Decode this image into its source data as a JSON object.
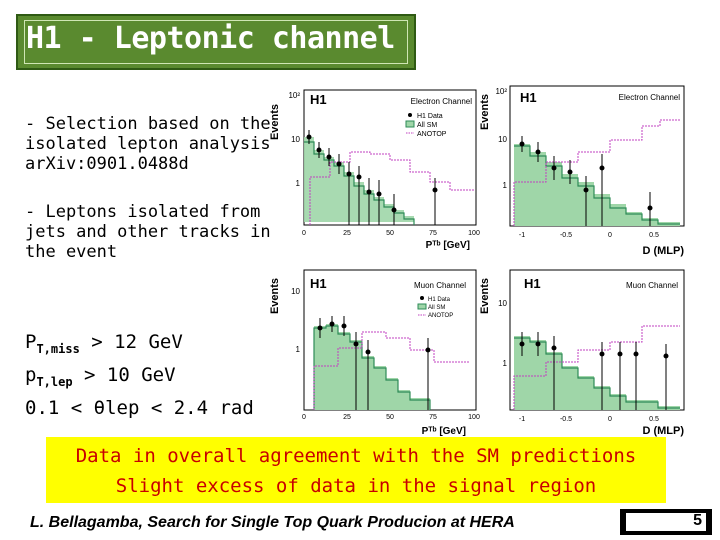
{
  "slide": {
    "title": "H1 - Leptonic channel",
    "bullet1": "- Selection based on the isolated lepton analysis arXiv:0901.0488d",
    "bullet2": "- Leptons isolated from jets and other tracks in the event",
    "cut1_a": "P",
    "cut1_sub": "T,miss",
    "cut1_b": " > 12 GeV",
    "cut2_a": "p",
    "cut2_sub": "T,lep",
    "cut2_b": " > 10 GeV",
    "cut3": "0.1 < θlep < 2.4 rad",
    "summary1": "Data in overall agreement with the SM predictions",
    "summary2": "Slight excess of data in the signal region",
    "footer": "L. Bellagamba, Search for Single Top Quark Producion at HERA",
    "page": "5"
  },
  "plots": {
    "experiment": "H1",
    "ylabel": "Events",
    "electron_channel": "Electron Channel",
    "muon_channel": "Muon Channel",
    "legend_data": "H1 Data",
    "legend_sm": "All SM",
    "legend_anotop": "ANOTOP",
    "xlabel_pt": "Pᵀᵇ [GeV]",
    "xlabel_mlp": "D (MLP)",
    "pt_ticks": [
      "0",
      "25",
      "50",
      "75",
      "100"
    ],
    "mlp_ticks": [
      "-1",
      "-0.5",
      "0",
      "0.5"
    ],
    "e_pt_yticks": [
      "10²",
      "10",
      "1"
    ],
    "e_mlp_yticks": [
      "10²",
      "10",
      "1"
    ],
    "mu_pt_yticks": [
      "10",
      "1"
    ],
    "mu_mlp_yticks": [
      "10",
      "1"
    ],
    "colors": {
      "data": "#000000",
      "sm": "#2e8b57",
      "sm_band": "#9fd6a8",
      "anotop": "#c040c0"
    }
  }
}
